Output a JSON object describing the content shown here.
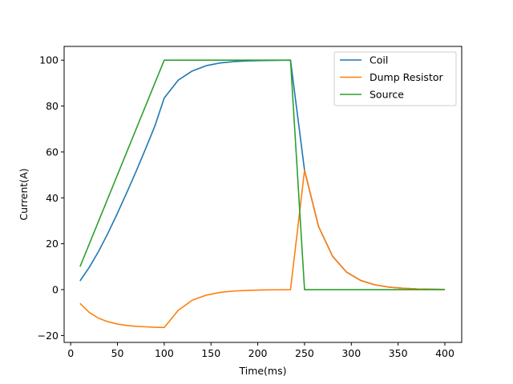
{
  "chart_data": {
    "type": "line",
    "xlabel": "Time(ms)",
    "ylabel": "Current(A)",
    "xlim": [
      -7,
      418
    ],
    "ylim": [
      -23,
      106
    ],
    "xticks": [
      0,
      50,
      100,
      150,
      200,
      250,
      300,
      350,
      400
    ],
    "yticks": [
      -20,
      0,
      20,
      40,
      60,
      80,
      100
    ],
    "legend_position": "top-right",
    "grid": false,
    "series": [
      {
        "name": "Coil",
        "color": "#1f77b4",
        "x": [
          10,
          20,
          30,
          40,
          50,
          60,
          70,
          80,
          90,
          100,
          115,
          130,
          145,
          160,
          175,
          190,
          205,
          220,
          235,
          250,
          265,
          280,
          295,
          310,
          325,
          340,
          355,
          370,
          385,
          400
        ],
        "y": [
          3.8,
          9.8,
          16.8,
          24.7,
          33.3,
          42.3,
          51.6,
          61.3,
          71.3,
          83.5,
          91.3,
          95.3,
          97.6,
          98.8,
          99.4,
          99.7,
          99.85,
          99.92,
          100,
          52,
          27.5,
          14.5,
          7.6,
          4,
          2.1,
          1.1,
          0.6,
          0.3,
          0.15,
          0.1
        ]
      },
      {
        "name": "Dump Resistor",
        "color": "#ff7f0e",
        "x": [
          10,
          20,
          30,
          40,
          50,
          60,
          70,
          80,
          90,
          100,
          115,
          130,
          145,
          160,
          175,
          190,
          205,
          220,
          235,
          250,
          265,
          280,
          295,
          310,
          325,
          340,
          355,
          370,
          385,
          400
        ],
        "y": [
          -6,
          -10,
          -12.5,
          -14,
          -15,
          -15.6,
          -16,
          -16.2,
          -16.4,
          -16.5,
          -9,
          -4.6,
          -2.4,
          -1.2,
          -0.6,
          -0.3,
          -0.15,
          -0.08,
          0,
          52,
          27.5,
          14.5,
          7.6,
          4,
          2.1,
          1.1,
          0.6,
          0.3,
          0.15,
          0.1
        ]
      },
      {
        "name": "Source",
        "color": "#2ca02c",
        "x": [
          10,
          100,
          235,
          250,
          400
        ],
        "y": [
          10,
          100,
          100,
          0,
          0
        ]
      }
    ]
  }
}
